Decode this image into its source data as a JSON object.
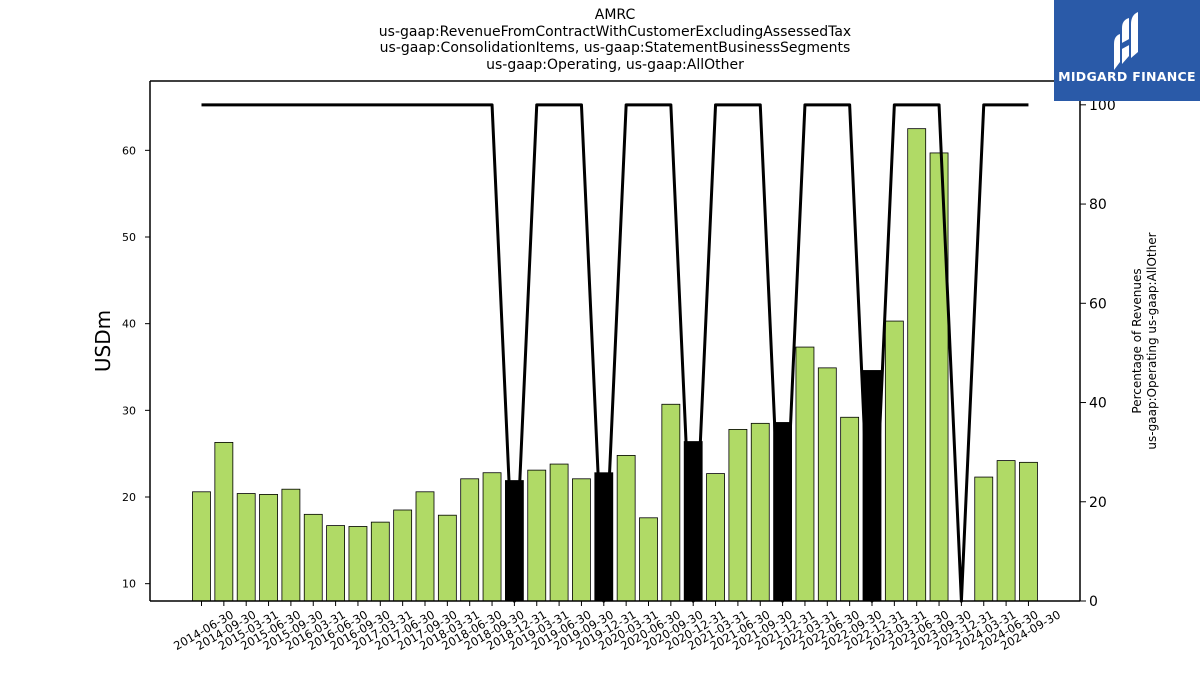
{
  "title_lines": [
    "AMRC",
    "us-gaap:RevenueFromContractWithCustomerExcludingAssessedTax",
    "us-gaap:ConsolidationItems, us-gaap:StatementBusinessSegments",
    "us-gaap:Operating, us-gaap:AllOther"
  ],
  "logo": {
    "text": "MIDGARD FINANCE",
    "icon": "midgard-logo-icon",
    "bg_color": "#2a5aa8"
  },
  "chart_data": {
    "type": "bar",
    "categories": [
      "2014-06-30",
      "2014-09-30",
      "2015-03-31",
      "2015-06-30",
      "2015-09-30",
      "2016-03-31",
      "2016-06-30",
      "2016-09-30",
      "2017-03-31",
      "2017-06-30",
      "2017-09-30",
      "2018-03-31",
      "2018-06-30",
      "2018-09-30",
      "2018-12-31",
      "2019-03-31",
      "2019-06-30",
      "2019-09-30",
      "2019-12-31",
      "2020-03-31",
      "2020-06-30",
      "2020-09-30",
      "2020-12-31",
      "2021-03-31",
      "2021-06-30",
      "2021-09-30",
      "2021-12-31",
      "2022-03-31",
      "2022-06-30",
      "2022-09-30",
      "2022-12-31",
      "2023-03-31",
      "2023-06-30",
      "2023-09-30",
      "2023-12-31",
      "2024-03-31",
      "2024-06-30",
      "2024-09-30"
    ],
    "series": [
      {
        "type": "bar",
        "axis": "left",
        "values": [
          20.6,
          26.3,
          20.4,
          20.3,
          20.9,
          18.0,
          16.7,
          16.6,
          17.1,
          18.5,
          20.6,
          17.9,
          22.1,
          22.8,
          21.9,
          23.1,
          23.8,
          22.1,
          22.8,
          24.8,
          17.6,
          30.7,
          26.4,
          22.7,
          27.8,
          28.5,
          28.6,
          37.3,
          34.9,
          29.2,
          34.6,
          40.3,
          62.5,
          59.7,
          null,
          22.3,
          24.2,
          24.0
        ],
        "colors": [
          "#b0da66",
          "#b0da66",
          "#b0da66",
          "#b0da66",
          "#b0da66",
          "#b0da66",
          "#b0da66",
          "#b0da66",
          "#b0da66",
          "#b0da66",
          "#b0da66",
          "#b0da66",
          "#b0da66",
          "#b0da66",
          "#000000",
          "#b0da66",
          "#b0da66",
          "#b0da66",
          "#000000",
          "#b0da66",
          "#b0da66",
          "#b0da66",
          "#000000",
          "#b0da66",
          "#b0da66",
          "#b0da66",
          "#000000",
          "#b0da66",
          "#b0da66",
          "#b0da66",
          "#000000",
          "#b0da66",
          "#b0da66",
          "#b0da66",
          "#b0da66",
          "#b0da66",
          "#b0da66",
          "#b0da66"
        ]
      },
      {
        "type": "line",
        "axis": "right",
        "color": "#000000",
        "values": [
          100,
          100,
          100,
          100,
          100,
          100,
          100,
          100,
          100,
          100,
          100,
          100,
          100,
          100,
          0,
          100,
          100,
          100,
          0,
          100,
          100,
          100,
          0,
          100,
          100,
          100,
          0,
          100,
          100,
          100,
          0,
          100,
          100,
          100,
          0,
          100,
          100,
          100
        ]
      }
    ],
    "ylabel": "USDm",
    "ylim": [
      8,
      68
    ],
    "yticks": [
      10,
      20,
      30,
      40,
      50,
      60
    ],
    "y2label_lines": [
      "Percentage of Revenues",
      "us-gaap:Operating us-gaap:AllOther"
    ],
    "y2lim": [
      0,
      104.8
    ],
    "y2ticks": [
      0,
      20,
      40,
      60,
      80,
      100
    ],
    "grid": false
  }
}
